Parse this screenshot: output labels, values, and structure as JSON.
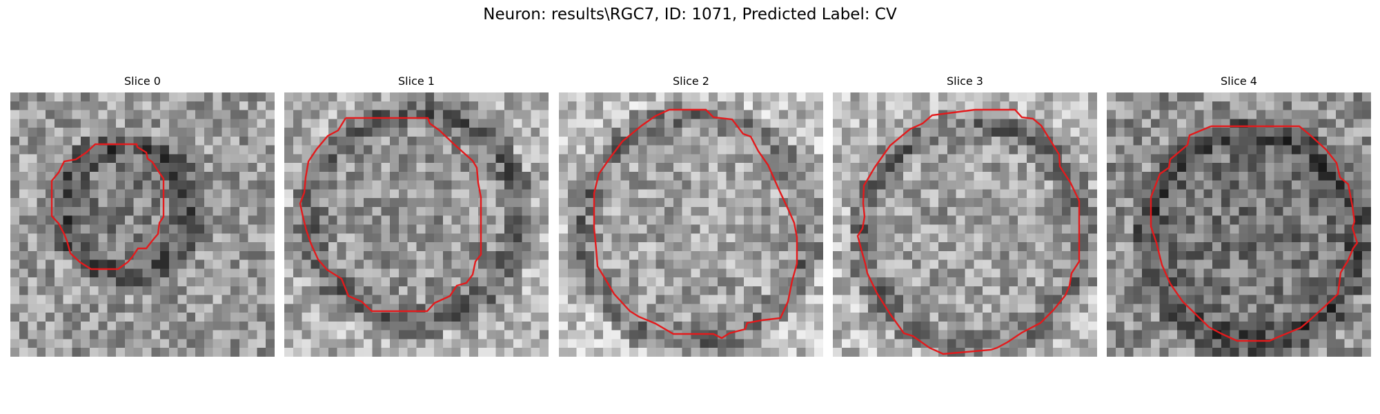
{
  "figure": {
    "title": "Neuron: results\\RGC7, ID: 1071, Predicted Label: CV"
  },
  "colors": {
    "outline": "#e31a1c",
    "background": "#ffffff"
  },
  "slices": [
    {
      "title": "Slice 0"
    },
    {
      "title": "Slice 1"
    },
    {
      "title": "Slice 2"
    },
    {
      "title": "Slice 3"
    },
    {
      "title": "Slice 4"
    }
  ]
}
